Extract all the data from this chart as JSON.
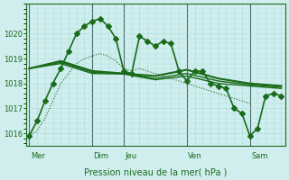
{
  "background_color": "#d0eeee",
  "grid_color": "#aadddd",
  "line_color": "#1a6b1a",
  "xlabel": "Pression niveau de la mer( hPa )",
  "ylim": [
    1015.5,
    1021.2
  ],
  "yticks": [
    1016,
    1017,
    1018,
    1019,
    1020
  ],
  "day_labels": [
    "Mer",
    "Dim",
    "Jeu",
    "Ven",
    "Sam"
  ],
  "day_positions": [
    0,
    48,
    72,
    120,
    168
  ],
  "vline_positions": [
    0,
    48,
    72,
    120,
    168
  ],
  "series1": {
    "x": [
      0,
      6,
      12,
      18,
      24,
      30,
      36,
      42,
      48,
      54,
      60,
      66,
      72,
      78,
      84,
      90,
      96,
      102,
      108,
      114,
      120,
      126,
      132,
      138,
      144,
      150,
      156,
      162,
      168,
      174,
      180,
      186,
      192
    ],
    "y": [
      1015.9,
      1016.5,
      1017.3,
      1018.0,
      1018.6,
      1019.3,
      1020.0,
      1020.3,
      1020.5,
      1020.6,
      1020.3,
      1019.8,
      1018.5,
      1018.4,
      1019.9,
      1019.7,
      1019.5,
      1019.7,
      1019.6,
      1018.5,
      1018.1,
      1018.5,
      1018.5,
      1018.0,
      1017.9,
      1017.8,
      1017.0,
      1016.8,
      1015.9,
      1016.2,
      1017.5,
      1017.6,
      1017.5
    ],
    "marker": "D",
    "markersize": 3,
    "linewidth": 1.2,
    "dotted": false
  },
  "series2": {
    "x": [
      0,
      24,
      48,
      72,
      96,
      120,
      144,
      168,
      192
    ],
    "y": [
      1018.6,
      1018.9,
      1018.5,
      1018.4,
      1018.3,
      1018.55,
      1018.2,
      1018.0,
      1017.9
    ],
    "marker": null,
    "linewidth": 1.5,
    "dotted": false
  },
  "series3": {
    "x": [
      0,
      24,
      48,
      72,
      96,
      120,
      144,
      168,
      192
    ],
    "y": [
      1018.6,
      1018.85,
      1018.45,
      1018.4,
      1018.2,
      1018.4,
      1018.1,
      1017.95,
      1017.85
    ],
    "marker": null,
    "linewidth": 1.0,
    "dotted": false
  },
  "series4": {
    "x": [
      0,
      24,
      48,
      72,
      96,
      120,
      144,
      168,
      192
    ],
    "y": [
      1018.6,
      1018.8,
      1018.4,
      1018.38,
      1018.15,
      1018.3,
      1018.0,
      1017.9,
      1017.8
    ],
    "marker": null,
    "linewidth": 1.0,
    "dotted": false
  },
  "series5_dotted": {
    "x": [
      0,
      6,
      12,
      18,
      24,
      30,
      36,
      42,
      48,
      54,
      60,
      66,
      72,
      78,
      84,
      90,
      96,
      102,
      108,
      114,
      120,
      126,
      132,
      138,
      144,
      150,
      156,
      162,
      168
    ],
    "y": [
      1015.9,
      1016.1,
      1016.6,
      1017.3,
      1018.0,
      1018.4,
      1018.8,
      1019.0,
      1019.1,
      1019.2,
      1019.1,
      1018.9,
      1018.6,
      1018.5,
      1018.6,
      1018.5,
      1018.4,
      1018.3,
      1018.2,
      1018.1,
      1018.0,
      1017.9,
      1017.8,
      1017.7,
      1017.6,
      1017.5,
      1017.4,
      1017.3,
      1017.2
    ],
    "linewidth": 0.8,
    "dotted": true
  }
}
